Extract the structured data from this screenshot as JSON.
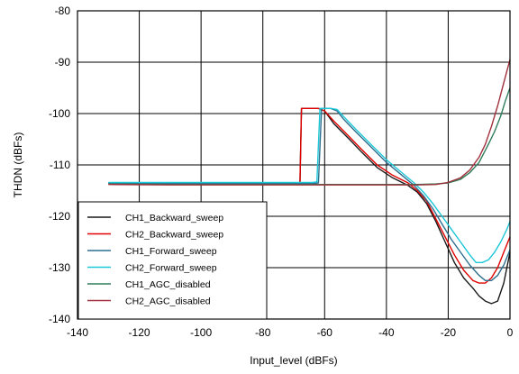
{
  "chart_data": {
    "type": "line",
    "xlabel": "Input_level (dBFs)",
    "ylabel": "THDN (dBFs)",
    "xlim": [
      -140,
      0
    ],
    "ylim": [
      -140,
      -80
    ],
    "xticks": [
      -140,
      -120,
      -100,
      -80,
      -60,
      -40,
      -20,
      0
    ],
    "yticks": [
      -80,
      -90,
      -100,
      -110,
      -120,
      -130,
      -140
    ],
    "xtick_labels": [
      "-140",
      "-120",
      "-100",
      "-80",
      "-60",
      "-40",
      "-20",
      "0"
    ],
    "ytick_labels": [
      "-80",
      "-90",
      "-100",
      "-110",
      "-120",
      "-130",
      "-140"
    ],
    "grid": true,
    "legend_position": "bottom-left",
    "series": [
      {
        "name": "CH1_Backward_sweep",
        "color": "#1a1a1a",
        "points": [
          [
            -130,
            -113.5
          ],
          [
            -110,
            -113.6
          ],
          [
            -90,
            -113.6
          ],
          [
            -70,
            -113.6
          ],
          [
            -68,
            -113.6
          ],
          [
            -67.5,
            -99
          ],
          [
            -64,
            -99
          ],
          [
            -62,
            -99
          ],
          [
            -60,
            -99.5
          ],
          [
            -57,
            -102
          ],
          [
            -52,
            -105
          ],
          [
            -48,
            -107.5
          ],
          [
            -43,
            -110.5
          ],
          [
            -38,
            -112.5
          ],
          [
            -33,
            -114
          ],
          [
            -30,
            -115.3
          ],
          [
            -27,
            -117.5
          ],
          [
            -24,
            -121
          ],
          [
            -21,
            -125
          ],
          [
            -18,
            -129
          ],
          [
            -15,
            -132
          ],
          [
            -12,
            -134
          ],
          [
            -10,
            -135.5
          ],
          [
            -8,
            -136.5
          ],
          [
            -6,
            -137
          ],
          [
            -4,
            -136.5
          ],
          [
            -2,
            -133
          ],
          [
            0,
            -127
          ]
        ]
      },
      {
        "name": "CH2_Backward_sweep",
        "color": "#e00000",
        "points": [
          [
            -130,
            -113.6
          ],
          [
            -110,
            -113.7
          ],
          [
            -90,
            -113.7
          ],
          [
            -70,
            -113.7
          ],
          [
            -68,
            -113.7
          ],
          [
            -67.5,
            -99
          ],
          [
            -64,
            -99
          ],
          [
            -62,
            -99
          ],
          [
            -60,
            -99.5
          ],
          [
            -57,
            -101.5
          ],
          [
            -52,
            -104.5
          ],
          [
            -48,
            -107
          ],
          [
            -43,
            -110
          ],
          [
            -38,
            -112
          ],
          [
            -33,
            -113.5
          ],
          [
            -30,
            -115
          ],
          [
            -27,
            -117
          ],
          [
            -24,
            -120.5
          ],
          [
            -21,
            -124
          ],
          [
            -18,
            -127.5
          ],
          [
            -15,
            -130.5
          ],
          [
            -12,
            -132.5
          ],
          [
            -10,
            -133
          ],
          [
            -8,
            -133
          ],
          [
            -6,
            -132
          ],
          [
            -4,
            -130
          ],
          [
            -2,
            -127
          ],
          [
            0,
            -124
          ]
        ]
      },
      {
        "name": "CH1_Forward_sweep",
        "color": "#2f6f8f",
        "points": [
          [
            -130,
            -113.6
          ],
          [
            -110,
            -113.6
          ],
          [
            -90,
            -113.6
          ],
          [
            -70,
            -113.6
          ],
          [
            -64,
            -113.6
          ],
          [
            -62,
            -113.5
          ],
          [
            -61,
            -99
          ],
          [
            -58,
            -99
          ],
          [
            -56,
            -99.5
          ],
          [
            -54,
            -101
          ],
          [
            -50,
            -103.5
          ],
          [
            -45,
            -106.5
          ],
          [
            -40,
            -109.5
          ],
          [
            -35,
            -112
          ],
          [
            -31,
            -114
          ],
          [
            -28,
            -116
          ],
          [
            -25,
            -118.5
          ],
          [
            -22,
            -121.5
          ],
          [
            -19,
            -124.5
          ],
          [
            -16,
            -127
          ],
          [
            -13,
            -129.5
          ],
          [
            -10,
            -131.5
          ],
          [
            -8,
            -132.5
          ],
          [
            -6,
            -132.5
          ],
          [
            -4,
            -131.5
          ],
          [
            -2,
            -129.5
          ],
          [
            0,
            -126.5
          ]
        ]
      },
      {
        "name": "CH2_Forward_sweep",
        "color": "#1cc7d8",
        "points": [
          [
            -130,
            -113.4
          ],
          [
            -110,
            -113.4
          ],
          [
            -90,
            -113.4
          ],
          [
            -70,
            -113.4
          ],
          [
            -64,
            -113.4
          ],
          [
            -62.5,
            -113.3
          ],
          [
            -61.5,
            -99
          ],
          [
            -58,
            -99
          ],
          [
            -56,
            -99.2
          ],
          [
            -54,
            -100.5
          ],
          [
            -50,
            -103
          ],
          [
            -45,
            -106
          ],
          [
            -40,
            -109
          ],
          [
            -35,
            -111.5
          ],
          [
            -31,
            -113.5
          ],
          [
            -28,
            -115.3
          ],
          [
            -25,
            -117.5
          ],
          [
            -22,
            -120
          ],
          [
            -19,
            -122.5
          ],
          [
            -16,
            -125
          ],
          [
            -13,
            -127.5
          ],
          [
            -11,
            -129
          ],
          [
            -9,
            -129
          ],
          [
            -7,
            -128.5
          ],
          [
            -5,
            -127
          ],
          [
            -3,
            -125
          ],
          [
            -1,
            -122.5
          ],
          [
            0,
            -121
          ]
        ]
      },
      {
        "name": "CH1_AGC_disabled",
        "color": "#2e7d5b",
        "points": [
          [
            -130,
            -113.7
          ],
          [
            -110,
            -113.8
          ],
          [
            -90,
            -113.8
          ],
          [
            -70,
            -113.8
          ],
          [
            -50,
            -113.8
          ],
          [
            -40,
            -113.8
          ],
          [
            -30,
            -113.8
          ],
          [
            -24,
            -113.7
          ],
          [
            -20,
            -113.5
          ],
          [
            -16,
            -112.8
          ],
          [
            -13,
            -111.5
          ],
          [
            -10,
            -109.5
          ],
          [
            -7,
            -106
          ],
          [
            -5,
            -103.5
          ],
          [
            -3,
            -100.5
          ],
          [
            -1.5,
            -97.5
          ],
          [
            0,
            -95
          ]
        ]
      },
      {
        "name": "CH2_AGC_disabled",
        "color": "#a0303a",
        "points": [
          [
            -130,
            -113.8
          ],
          [
            -110,
            -113.9
          ],
          [
            -90,
            -113.9
          ],
          [
            -70,
            -113.9
          ],
          [
            -50,
            -113.9
          ],
          [
            -40,
            -113.9
          ],
          [
            -30,
            -113.9
          ],
          [
            -24,
            -113.8
          ],
          [
            -20,
            -113.4
          ],
          [
            -16,
            -112.5
          ],
          [
            -13,
            -111
          ],
          [
            -10,
            -108.5
          ],
          [
            -8,
            -106
          ],
          [
            -6,
            -102.5
          ],
          [
            -4,
            -98.5
          ],
          [
            -2,
            -94
          ],
          [
            0,
            -89.5
          ]
        ]
      }
    ]
  }
}
